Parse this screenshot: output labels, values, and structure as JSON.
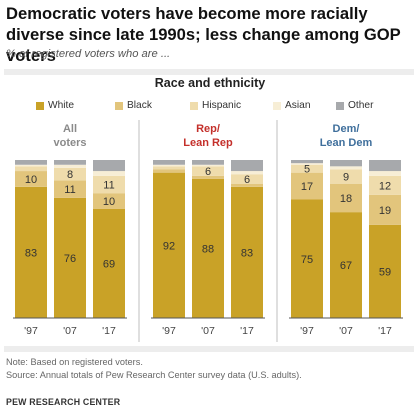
{
  "title": "Democratic voters have become more racially diverse since late 1990s; less change among GOP voters",
  "subtitle": "% of registered voters who are ...",
  "panel_title": "Race and ethnicity",
  "colors": {
    "White": "#c9a227",
    "Black": "#e2c57c",
    "Hispanic": "#efdcac",
    "Asian": "#f7eed6",
    "Other": "#a7a9ac",
    "group_all": "#8a8a8a",
    "group_rep": "#c4302b",
    "group_dem": "#3f6f9c",
    "divider": "#bfbfbf",
    "baseline": "#555555"
  },
  "chart_data": {
    "type": "bar",
    "stacked": true,
    "legend": [
      "White",
      "Black",
      "Hispanic",
      "Asian",
      "Other"
    ],
    "legend_position": "top",
    "categories": [
      "'97",
      "'07",
      "'17"
    ],
    "ylim": [
      0,
      100
    ],
    "groups": [
      {
        "label_line1": "All",
        "label_line2": "voters",
        "series": [
          {
            "name": "White",
            "values": [
              83,
              76,
              69
            ]
          },
          {
            "name": "Black",
            "values": [
              10,
              11,
              10
            ]
          },
          {
            "name": "Hispanic",
            "values": [
              3,
              8,
              11
            ]
          },
          {
            "name": "Asian",
            "values": [
              1,
              2,
              3
            ]
          },
          {
            "name": "Other",
            "values": [
              3,
              3,
              7
            ]
          }
        ],
        "labels": [
          {
            "White": "83",
            "Black": "10",
            "Hispanic": ""
          },
          {
            "White": "76",
            "Black": "11",
            "Hispanic": "8"
          },
          {
            "White": "69",
            "Black": "10",
            "Hispanic": "11"
          }
        ]
      },
      {
        "label_line1": "Rep/",
        "label_line2": "Lean Rep",
        "series": [
          {
            "name": "White",
            "values": [
              92,
              88,
              83
            ]
          },
          {
            "name": "Black",
            "values": [
              2,
              2,
              2
            ]
          },
          {
            "name": "Hispanic",
            "values": [
              2,
              6,
              6
            ]
          },
          {
            "name": "Asian",
            "values": [
              1,
              1,
              2
            ]
          },
          {
            "name": "Other",
            "values": [
              3,
              3,
              7
            ]
          }
        ],
        "labels": [
          {
            "White": "92",
            "Black": "",
            "Hispanic": ""
          },
          {
            "White": "88",
            "Black": "",
            "Hispanic": "6"
          },
          {
            "White": "83",
            "Black": "",
            "Hispanic": "6"
          }
        ]
      },
      {
        "label_line1": "Dem/",
        "label_line2": "Lean Dem",
        "series": [
          {
            "name": "White",
            "values": [
              75,
              67,
              59
            ]
          },
          {
            "name": "Black",
            "values": [
              17,
              18,
              19
            ]
          },
          {
            "name": "Hispanic",
            "values": [
              5,
              9,
              12
            ]
          },
          {
            "name": "Asian",
            "values": [
              1,
              2,
              3
            ]
          },
          {
            "name": "Other",
            "values": [
              2,
              4,
              7
            ]
          }
        ],
        "labels": [
          {
            "White": "75",
            "Black": "17",
            "Hispanic": "5"
          },
          {
            "White": "67",
            "Black": "18",
            "Hispanic": "9"
          },
          {
            "White": "59",
            "Black": "19",
            "Hispanic": "12"
          }
        ]
      }
    ]
  },
  "note": "Note: Based on registered voters.",
  "source": "Source: Annual totals of Pew Research Center survey data (U.S. adults).",
  "footer": "PEW RESEARCH CENTER"
}
